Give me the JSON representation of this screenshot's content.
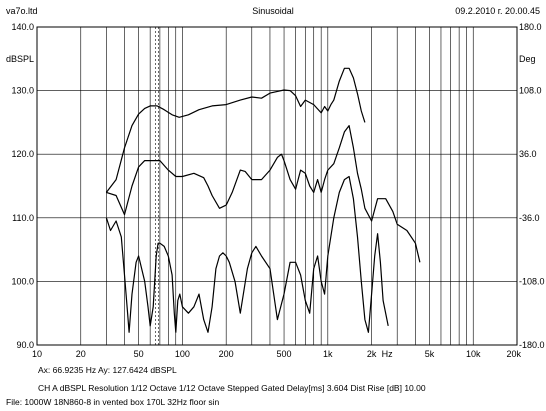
{
  "header": {
    "company": "va7o.ltd",
    "title": "Sinusoidal",
    "datetime": "09.2.2010 г. 20.00.45"
  },
  "footer": {
    "cursor_readout": "Ax: 66.9235 Hz   Ay: 127.6424 dBSPL",
    "settings": "CH A   dBSPL   Resolution 1/12 Octave   1/12 Octave   Stepped   Gated   Delay[ms] 3.604   Dist Rise [dB] 10.00",
    "file": "File: 1000W 18N860-8 in vented box 170L 32Hz floor sin"
  },
  "colors": {
    "background": "#ffffff",
    "grid": "#000000",
    "trace": "#000000"
  },
  "chart_data": {
    "type": "line",
    "x_scale": "log",
    "xlim": [
      10,
      20000
    ],
    "ylim": [
      90,
      140
    ],
    "y2lim": [
      -180,
      180
    ],
    "ylabel": "dBSPL",
    "y2label": "Deg",
    "xunit": "Hz",
    "grid": true,
    "x_tick_labels": [
      {
        "v": 10,
        "t": "10"
      },
      {
        "v": 20,
        "t": "20"
      },
      {
        "v": 50,
        "t": "50"
      },
      {
        "v": 100,
        "t": "100"
      },
      {
        "v": 200,
        "t": "200"
      },
      {
        "v": 500,
        "t": "500"
      },
      {
        "v": 1000,
        "t": "1k"
      },
      {
        "v": 2000,
        "t": "2k"
      },
      {
        "v": 5000,
        "t": "5k"
      },
      {
        "v": 10000,
        "t": "10k"
      },
      {
        "v": 20000,
        "t": "20k"
      }
    ],
    "y_tick_labels": [
      "90.0",
      "100.0",
      "110.0",
      "120.0",
      "130.0",
      "140.0"
    ],
    "y2_tick_labels": [
      "-180.0",
      "-108.0",
      "-36.0",
      "36.0",
      "108.0",
      "180.0"
    ],
    "cursor_x": 66.9235,
    "series": [
      {
        "values": [
          [
            30,
            114
          ],
          [
            35,
            116
          ],
          [
            40,
            121
          ],
          [
            45,
            124.5
          ],
          [
            50,
            126.3
          ],
          [
            55,
            127.2
          ],
          [
            60,
            127.6
          ],
          [
            67,
            127.6
          ],
          [
            75,
            127.0
          ],
          [
            85,
            126.2
          ],
          [
            95,
            125.8
          ],
          [
            110,
            126.2
          ],
          [
            130,
            127.0
          ],
          [
            160,
            127.6
          ],
          [
            200,
            127.8
          ],
          [
            250,
            128.5
          ],
          [
            300,
            129.0
          ],
          [
            350,
            128.8
          ],
          [
            400,
            129.6
          ],
          [
            500,
            130.1
          ],
          [
            550,
            130.0
          ],
          [
            600,
            129.2
          ],
          [
            650,
            127.5
          ],
          [
            700,
            128.5
          ],
          [
            800,
            127.8
          ],
          [
            900,
            126.5
          ],
          [
            950,
            127.5
          ],
          [
            1000,
            126.8
          ],
          [
            1050,
            127.8
          ],
          [
            1100,
            128.5
          ],
          [
            1200,
            131.5
          ],
          [
            1300,
            133.5
          ],
          [
            1400,
            133.5
          ],
          [
            1500,
            132.0
          ],
          [
            1600,
            129.5
          ],
          [
            1700,
            126.8
          ],
          [
            1800,
            125.0
          ]
        ]
      },
      {
        "values": [
          [
            30,
            114
          ],
          [
            35,
            113.5
          ],
          [
            40,
            110.5
          ],
          [
            45,
            115
          ],
          [
            50,
            118
          ],
          [
            55,
            119
          ],
          [
            60,
            119
          ],
          [
            70,
            119
          ],
          [
            80,
            117.5
          ],
          [
            90,
            116.5
          ],
          [
            100,
            116.5
          ],
          [
            120,
            117
          ],
          [
            140,
            116.3
          ],
          [
            150,
            115
          ],
          [
            160,
            113.5
          ],
          [
            180,
            111.5
          ],
          [
            200,
            112
          ],
          [
            220,
            114
          ],
          [
            250,
            117.5
          ],
          [
            270,
            117.3
          ],
          [
            300,
            116
          ],
          [
            350,
            116
          ],
          [
            400,
            117.5
          ],
          [
            450,
            119.5
          ],
          [
            480,
            120
          ],
          [
            500,
            119
          ],
          [
            550,
            116
          ],
          [
            600,
            114.5
          ],
          [
            650,
            117.5
          ],
          [
            700,
            117
          ],
          [
            750,
            115
          ],
          [
            800,
            114
          ],
          [
            850,
            116
          ],
          [
            900,
            114
          ],
          [
            950,
            116
          ],
          [
            1000,
            117.5
          ],
          [
            1100,
            118.5
          ],
          [
            1200,
            121
          ],
          [
            1300,
            123.5
          ],
          [
            1400,
            124.5
          ],
          [
            1500,
            121
          ],
          [
            1600,
            117
          ],
          [
            1700,
            114.5
          ],
          [
            1800,
            111.5
          ],
          [
            2000,
            109.5
          ],
          [
            2200,
            113
          ],
          [
            2500,
            113
          ],
          [
            2800,
            111
          ],
          [
            3000,
            109
          ],
          [
            3500,
            108
          ],
          [
            4000,
            106
          ],
          [
            4300,
            103
          ]
        ]
      },
      {
        "values": [
          [
            30,
            110
          ],
          [
            32,
            108
          ],
          [
            35,
            109.5
          ],
          [
            38,
            107
          ],
          [
            40,
            101
          ],
          [
            42,
            95
          ],
          [
            43,
            92
          ],
          [
            45,
            98
          ],
          [
            48,
            103
          ],
          [
            50,
            104
          ],
          [
            55,
            100
          ],
          [
            58,
            96
          ],
          [
            60,
            93
          ],
          [
            63,
            96
          ],
          [
            66,
            104
          ],
          [
            68,
            106
          ],
          [
            70,
            106
          ],
          [
            75,
            105.5
          ],
          [
            80,
            104
          ],
          [
            85,
            101
          ],
          [
            88,
            95
          ],
          [
            90,
            92
          ],
          [
            93,
            97
          ],
          [
            96,
            98
          ],
          [
            100,
            96
          ],
          [
            110,
            95
          ],
          [
            120,
            96
          ],
          [
            130,
            98
          ],
          [
            140,
            94
          ],
          [
            150,
            92
          ],
          [
            160,
            96
          ],
          [
            170,
            102
          ],
          [
            180,
            104
          ],
          [
            190,
            104.5
          ],
          [
            200,
            104
          ],
          [
            210,
            103
          ],
          [
            230,
            100
          ],
          [
            250,
            95
          ],
          [
            280,
            102
          ],
          [
            300,
            104.5
          ],
          [
            320,
            105.5
          ],
          [
            350,
            104
          ],
          [
            400,
            102
          ],
          [
            450,
            94
          ],
          [
            500,
            98
          ],
          [
            550,
            103
          ],
          [
            600,
            103
          ],
          [
            650,
            101
          ],
          [
            700,
            97
          ],
          [
            750,
            95
          ],
          [
            800,
            102
          ],
          [
            850,
            104
          ],
          [
            900,
            100
          ],
          [
            950,
            98
          ],
          [
            1000,
            104
          ],
          [
            1100,
            110
          ],
          [
            1200,
            114
          ],
          [
            1300,
            116
          ],
          [
            1400,
            116.5
          ],
          [
            1500,
            113
          ],
          [
            1600,
            107
          ],
          [
            1700,
            100
          ],
          [
            1800,
            94
          ],
          [
            1900,
            92
          ],
          [
            2000,
            98
          ],
          [
            2100,
            104
          ],
          [
            2200,
            107.5
          ],
          [
            2300,
            103
          ],
          [
            2400,
            97
          ],
          [
            2600,
            93
          ]
        ]
      }
    ]
  }
}
